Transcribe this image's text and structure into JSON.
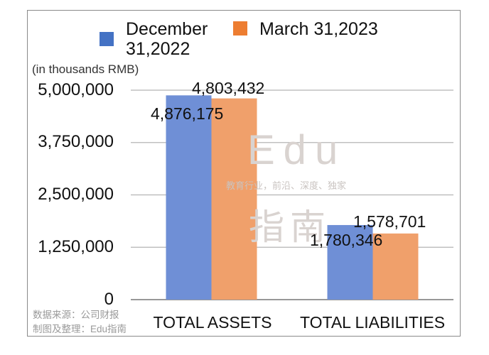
{
  "chart_data": {
    "type": "bar",
    "categories": [
      "TOTAL ASSETS",
      "TOTAL LIABILITIES"
    ],
    "series": [
      {
        "name": "December 31,2022",
        "values": [
          4876175,
          1780346
        ],
        "labels": [
          "4,876,175",
          "1,780,346"
        ],
        "color": "#6f8fd6"
      },
      {
        "name": "March 31,2023",
        "values": [
          4803432,
          1578701
        ],
        "labels": [
          "4,803,432",
          "1,578,701"
        ],
        "color": "#f0a06b"
      }
    ],
    "ylim": [
      0,
      5000000
    ],
    "yticks": [
      "0",
      "1,250,000",
      "2,500,000",
      "3,750,000",
      "5,000,000"
    ],
    "ytick_values": [
      0,
      1250000,
      2500000,
      3750000,
      5000000
    ],
    "unit_label": "(in thousands RMB)",
    "legend": {
      "position": "top",
      "items": [
        "December\n31,2022",
        "March 31,2023"
      ],
      "colors": [
        "#4472c4",
        "#ed7d31"
      ]
    },
    "grid": true
  },
  "source": {
    "line1": "数据来源：公司财报",
    "line2": "制图及整理：Edu指南"
  },
  "watermark": {
    "brand": "Edu",
    "tagline": "教育行业，前沿、深度、独家",
    "name": "指南"
  }
}
